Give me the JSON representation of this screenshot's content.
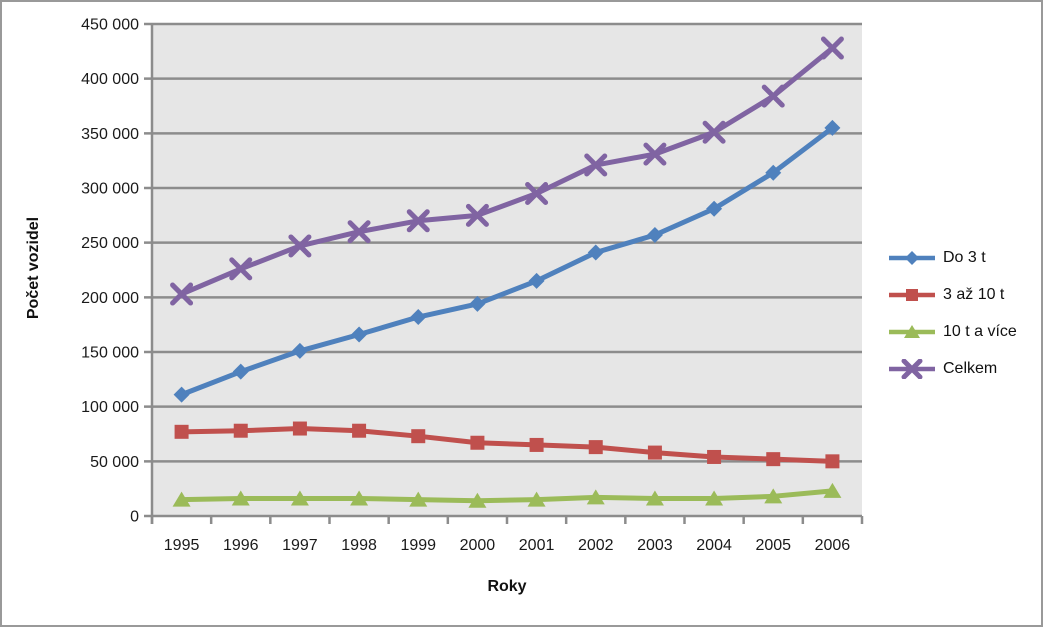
{
  "frame": {
    "background": "#FFFFFF",
    "border_color": "#999999"
  },
  "chart_data": {
    "type": "line",
    "title": "",
    "xlabel": "Roky",
    "ylabel": "Počet vozidel",
    "categories": [
      "1995",
      "1996",
      "1997",
      "1998",
      "1999",
      "2000",
      "2001",
      "2002",
      "2003",
      "2004",
      "2005",
      "2006"
    ],
    "ylim": [
      0,
      450000
    ],
    "ytick_step": 50000,
    "ytick_labels": [
      "0",
      "50 000",
      "100 000",
      "150 000",
      "200 000",
      "250 000",
      "300 000",
      "350 000",
      "400 000",
      "450 000"
    ],
    "grid": "horizontal-on",
    "legend_position": "right",
    "plot_bg_color": "#E6E6E6",
    "grid_color": "#8C8C8C",
    "axis_text_color": "#1A1A1A",
    "series": [
      {
        "name": "Do 3 t",
        "color": "#4F81BD",
        "marker": "diamond",
        "values": [
          111000,
          132000,
          151000,
          166000,
          182000,
          194000,
          215000,
          241000,
          257000,
          281000,
          314000,
          355000
        ]
      },
      {
        "name": "3 až 10 t",
        "color": "#C0504D",
        "marker": "square",
        "values": [
          77000,
          78000,
          80000,
          78000,
          73000,
          67000,
          65000,
          63000,
          58000,
          54000,
          52000,
          50000
        ]
      },
      {
        "name": "10 t a více",
        "color": "#9BBB59",
        "marker": "triangle",
        "values": [
          15000,
          16000,
          16000,
          16000,
          15000,
          14000,
          15000,
          17000,
          16000,
          16000,
          18000,
          23000
        ]
      },
      {
        "name": "Celkem",
        "color": "#8064A2",
        "marker": "x",
        "values": [
          203000,
          226000,
          247000,
          260000,
          270000,
          275000,
          295000,
          321000,
          331000,
          351000,
          384000,
          428000
        ]
      }
    ]
  }
}
